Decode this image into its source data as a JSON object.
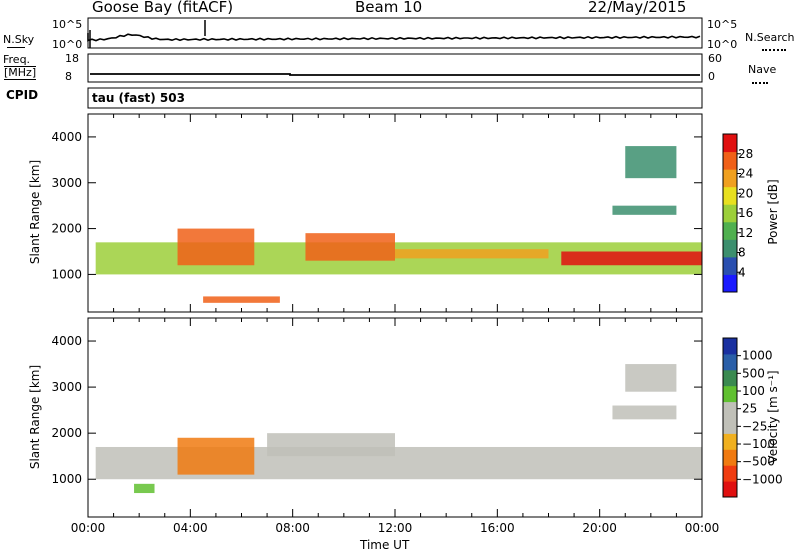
{
  "header": {
    "station": "Goose Bay (fitACF)",
    "beam": "Beam 10",
    "date": "22/May/2015"
  },
  "top_panels": {
    "nsky_label": "N.Sky",
    "nsearch_label": "N.Search",
    "freq_label_1": "Freq.",
    "freq_label_2": "[MHz]",
    "nave_label": "Nave",
    "cpid_label": "CPID",
    "cpid_value": "tau (fast) 503",
    "noise_ticks_left": [
      "10^5",
      "10^0"
    ],
    "noise_ticks_right": [
      "10^5",
      "10^0"
    ],
    "freq_ticks": [
      "18",
      "8"
    ],
    "nave_ticks": [
      "60",
      "0"
    ]
  },
  "colors": {
    "power_scale": [
      "#1a1aff",
      "#2a4fb0",
      "#3c8f6e",
      "#4fb04f",
      "#9ccf3a",
      "#e8e020",
      "#f0a020",
      "#f06018",
      "#e01010"
    ],
    "velocity_scale": [
      "#e01010",
      "#f03c10",
      "#f07a10",
      "#f0b020",
      "#c0c0b8",
      "#c0c0b8",
      "#60c030",
      "#3a8a50",
      "#2a5fa8",
      "#1a30a0"
    ],
    "ground_scatter": "#c0c0b8"
  },
  "chart_data": [
    {
      "type": "heatmap",
      "title": "Power",
      "ylabel": "Slant Range [km]",
      "yticks": [
        "1000",
        "2000",
        "3000",
        "4000"
      ],
      "ylim": [
        180,
        4500
      ],
      "xlim": [
        0,
        24
      ],
      "xticks": [
        "00:00",
        "04:00",
        "08:00",
        "12:00",
        "16:00",
        "20:00",
        "00:00"
      ],
      "colorbar_label": "Power [dB]",
      "colorbar_ticks": [
        "4",
        "8",
        "12",
        "16",
        "20",
        "24",
        "28"
      ],
      "bands": [
        {
          "t": [
            0.3,
            24
          ],
          "r": [
            1000,
            1700
          ],
          "level": 0.55
        },
        {
          "t": [
            3.5,
            6.5
          ],
          "r": [
            1200,
            2000
          ],
          "level": 0.85
        },
        {
          "t": [
            8.5,
            12
          ],
          "r": [
            1300,
            1900
          ],
          "level": 0.9
        },
        {
          "t": [
            18.5,
            24
          ],
          "r": [
            1200,
            1500
          ],
          "level": 0.95
        },
        {
          "t": [
            12,
            18
          ],
          "r": [
            1350,
            1550
          ],
          "level": 0.7
        },
        {
          "t": [
            20.5,
            23
          ],
          "r": [
            2300,
            2500
          ],
          "level": 0.3
        },
        {
          "t": [
            21,
            23
          ],
          "r": [
            3100,
            3800
          ],
          "level": 0.2
        },
        {
          "t": [
            4.5,
            7.5
          ],
          "r": [
            380,
            520
          ],
          "level": 0.9
        }
      ]
    },
    {
      "type": "heatmap",
      "title": "Velocity",
      "ylabel": "Slant Range [km]",
      "yticks": [
        "1000",
        "2000",
        "3000",
        "4000"
      ],
      "ylim": [
        180,
        4500
      ],
      "xlim": [
        0,
        24
      ],
      "xticks": [
        "00:00",
        "04:00",
        "08:00",
        "12:00",
        "16:00",
        "20:00",
        "00:00"
      ],
      "xlabel": "Time UT",
      "colorbar_label": "Velocity [m s⁻¹]",
      "colorbar_ticks": [
        "1000",
        "500",
        "100",
        "25",
        "−25",
        "−100",
        "−500",
        "−1000"
      ],
      "bands": [
        {
          "t": [
            0.3,
            24
          ],
          "r": [
            1000,
            1700
          ],
          "kind": "ground"
        },
        {
          "t": [
            3.5,
            6.5
          ],
          "r": [
            1100,
            1900
          ],
          "kind": "neg"
        },
        {
          "t": [
            7,
            12
          ],
          "r": [
            1500,
            2000
          ],
          "kind": "ground"
        },
        {
          "t": [
            20.5,
            23
          ],
          "r": [
            2300,
            2600
          ],
          "kind": "ground"
        },
        {
          "t": [
            21,
            23
          ],
          "r": [
            2900,
            3500
          ],
          "kind": "ground"
        },
        {
          "t": [
            1.8,
            2.6
          ],
          "r": [
            700,
            900
          ],
          "kind": "pos"
        }
      ]
    }
  ]
}
